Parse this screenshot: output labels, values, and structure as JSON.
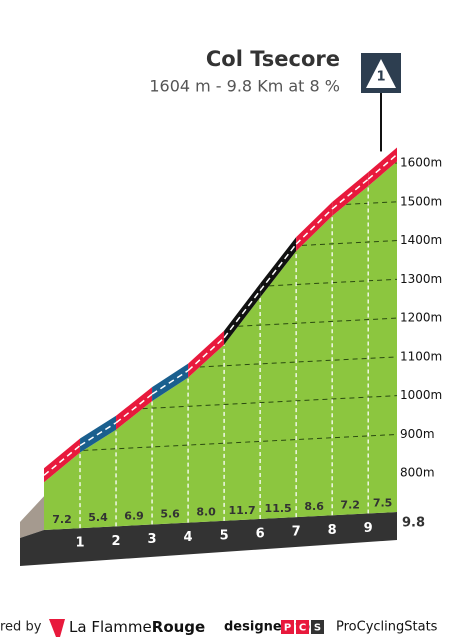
{
  "chart_data": {
    "type": "climb-profile",
    "title": "Col Tsecore",
    "subtitle": "1604 m - 9.8 Km at 8 %",
    "badge": "1",
    "x": [
      0,
      1,
      2,
      3,
      4,
      5,
      6,
      7,
      8,
      9,
      9.8
    ],
    "values": [
      823,
      895,
      949,
      1018,
      1074,
      1154,
      1271,
      1386,
      1472,
      1544,
      1604
    ],
    "xlim": [
      0,
      9.8
    ],
    "xticks": [
      1,
      2,
      3,
      4,
      5,
      6,
      7,
      8,
      9
    ],
    "ylim": [
      700,
      1600
    ],
    "yticks": [
      {
        "value": 800,
        "label": "800m"
      },
      {
        "value": 900,
        "label": "900m"
      },
      {
        "value": 1000,
        "label": "1000m"
      },
      {
        "value": 1100,
        "label": "1100m"
      },
      {
        "value": 1200,
        "label": "1200m"
      },
      {
        "value": 1300,
        "label": "1300m"
      },
      {
        "value": 1400,
        "label": "1400m"
      },
      {
        "value": 1500,
        "label": "1500m"
      },
      {
        "value": 1600,
        "label": "1600m"
      }
    ],
    "gradients": {
      "values": [
        7.2,
        5.4,
        6.9,
        5.6,
        8.0,
        11.7,
        11.5,
        8.6,
        7.2,
        7.5
      ],
      "value_labels": [
        "7.2",
        "5.4",
        "6.9",
        "5.6",
        "8.0",
        "11.7",
        "11.5",
        "8.6",
        "7.2",
        "7.5"
      ],
      "colors": [
        "#e8193c",
        "#1a5f8e",
        "#e8193c",
        "#1a5f8e",
        "#e8193c",
        "#111111",
        "#111111",
        "#e8193c",
        "#e8193c",
        "#e8193c"
      ]
    },
    "area_color": "#8cc63f",
    "grid": true
  },
  "footer": {
    "powered_by": "red by",
    "brand_a": "La Flamme",
    "brand_b": "Rouge",
    "designed_for": "designed for",
    "pcs_letters": [
      "P",
      "C",
      "S"
    ],
    "pcs_name": "ProCyclingStats"
  }
}
